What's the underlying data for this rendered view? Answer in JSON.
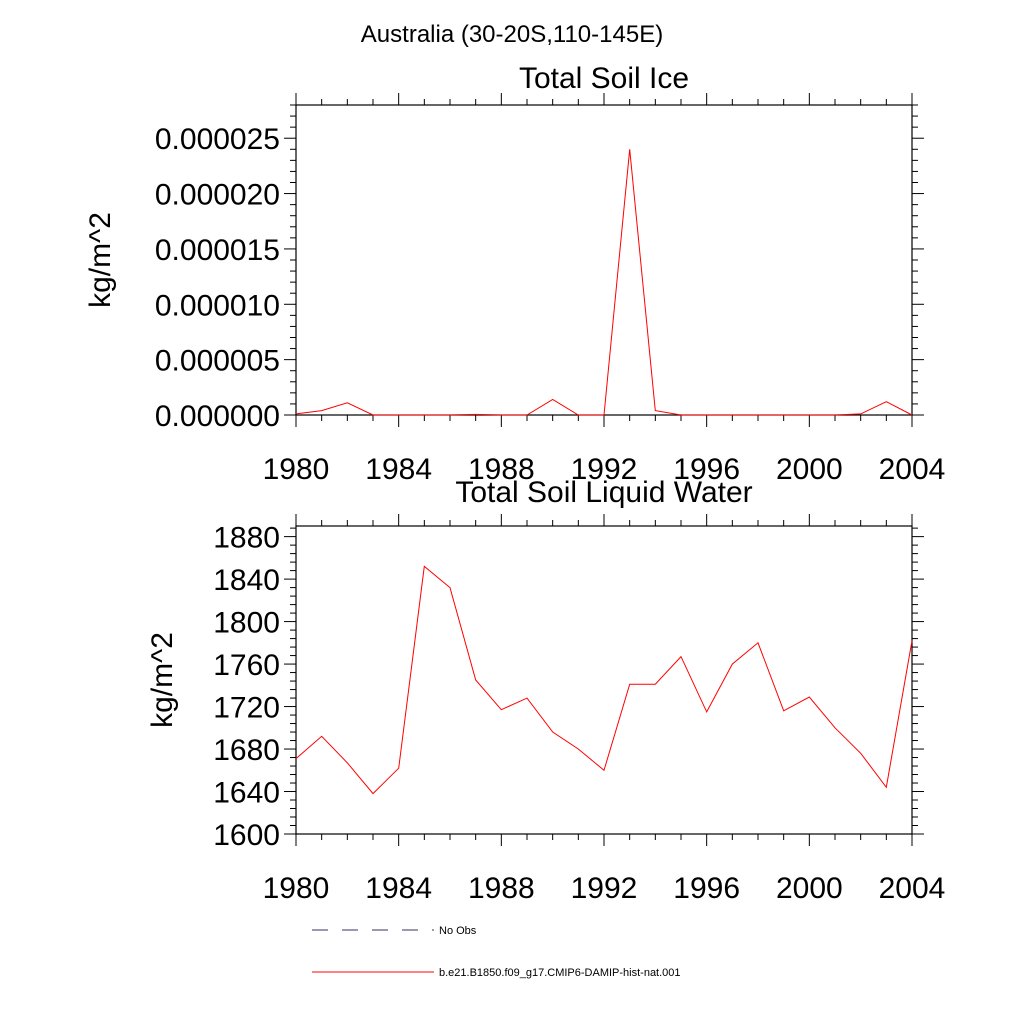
{
  "figure": {
    "suptitle": "Australia (30-20S,110-145E)"
  },
  "chart_data": [
    {
      "type": "line",
      "title": "Total Soil Ice",
      "ylabel": "kg/m^2",
      "xlabel": "",
      "xlim": [
        1980,
        2004
      ],
      "ylim": [
        0,
        2.8e-05
      ],
      "x_ticks": [
        1980,
        1984,
        1988,
        1992,
        1996,
        2000,
        2004
      ],
      "x_tick_labels": [
        "1980",
        "1984",
        "1988",
        "1992",
        "1996",
        "2000",
        "2004"
      ],
      "y_ticks": [
        0,
        5e-06,
        1e-05,
        1.5e-05,
        2e-05,
        2.5e-05
      ],
      "y_tick_labels": [
        "0.000000",
        "0.000005",
        "0.000010",
        "0.000015",
        "0.000020",
        "0.000025"
      ],
      "series": [
        {
          "name": "b.e21.B1850.f09_g17.CMIP6-DAMIP-hist-nat.001",
          "color": "#ff0000",
          "x": [
            1980,
            1981,
            1982,
            1983,
            1984,
            1985,
            1986,
            1987,
            1988,
            1989,
            1990,
            1991,
            1992,
            1993,
            1994,
            1995,
            1996,
            1997,
            1998,
            1999,
            2000,
            2001,
            2002,
            2003,
            2004
          ],
          "y": [
            1e-07,
            4e-07,
            1.1e-06,
            0.0,
            0.0,
            0.0,
            0.0,
            5e-08,
            0.0,
            0.0,
            1.4e-06,
            0.0,
            0.0,
            2.4e-05,
            4e-07,
            0.0,
            0.0,
            0.0,
            0.0,
            0.0,
            0.0,
            0.0,
            1e-07,
            1.2e-06,
            0.0
          ]
        }
      ]
    },
    {
      "type": "line",
      "title": "Total Soil Liquid Water",
      "ylabel": "kg/m^2",
      "xlabel": "",
      "xlim": [
        1980,
        2004
      ],
      "ylim": [
        1600,
        1890
      ],
      "x_ticks": [
        1980,
        1984,
        1988,
        1992,
        1996,
        2000,
        2004
      ],
      "x_tick_labels": [
        "1980",
        "1984",
        "1988",
        "1992",
        "1996",
        "2000",
        "2004"
      ],
      "y_ticks": [
        1600,
        1640,
        1680,
        1720,
        1760,
        1800,
        1840,
        1880
      ],
      "y_tick_labels": [
        "1600",
        "1640",
        "1680",
        "1720",
        "1760",
        "1800",
        "1840",
        "1880"
      ],
      "series": [
        {
          "name": "b.e21.B1850.f09_g17.CMIP6-DAMIP-hist-nat.001",
          "color": "#ff0000",
          "x": [
            1980,
            1981,
            1982,
            1983,
            1984,
            1985,
            1986,
            1987,
            1988,
            1989,
            1990,
            1991,
            1992,
            1993,
            1994,
            1995,
            1996,
            1997,
            1998,
            1999,
            2000,
            2001,
            2002,
            2003,
            2004
          ],
          "y": [
            1671,
            1692,
            1667,
            1638,
            1662,
            1852,
            1832,
            1745,
            1717,
            1728,
            1696,
            1680,
            1660,
            1741,
            1741,
            1767,
            1715,
            1760,
            1780,
            1716,
            1729,
            1700,
            1676,
            1644,
            1782
          ]
        }
      ]
    }
  ],
  "legend": {
    "placement": "bottom-center",
    "entries": [
      {
        "label": "No Obs",
        "style": "dashed",
        "color": "#333366"
      },
      {
        "label": "b.e21.B1850.f09_g17.CMIP6-DAMIP-hist-nat.001",
        "style": "solid",
        "color": "#ff0000"
      }
    ]
  }
}
